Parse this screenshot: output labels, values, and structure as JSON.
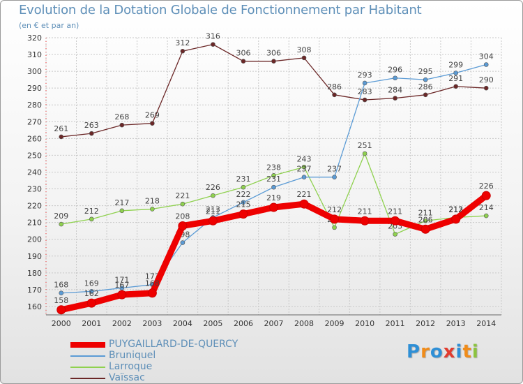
{
  "title": "Evolution de la Dotation Globale de Fonctionnement par Habitant",
  "subtitle": "(en € et par an)",
  "chart_data": {
    "type": "line",
    "title": "Evolution de la Dotation Globale de Fonctionnement par Habitant",
    "subtitle": "(en € et par an)",
    "xlabel": "",
    "ylabel": "",
    "x": [
      "2000",
      "2001",
      "2002",
      "2003",
      "2004",
      "2005",
      "2006",
      "2007",
      "2008",
      "2009",
      "2010",
      "2011",
      "2012",
      "2013",
      "2014"
    ],
    "ylim": [
      155,
      320
    ],
    "yticks": [
      160,
      170,
      180,
      190,
      200,
      210,
      220,
      230,
      240,
      250,
      260,
      270,
      280,
      290,
      300,
      310,
      320
    ],
    "grid": true,
    "legend_position": "bottom-left",
    "series": [
      {
        "name": "PUYGAILLARD-DE-QUERCY",
        "color": "#ee0000",
        "values": [
          158,
          162,
          167,
          168,
          208,
          211,
          215,
          219,
          221,
          212,
          211,
          211,
          206,
          212,
          226
        ]
      },
      {
        "name": "Bruniquel",
        "color": "#5b9bd5",
        "values": [
          168,
          169,
          171,
          173,
          198,
          213,
          222,
          231,
          237,
          237,
          293,
          296,
          295,
          299,
          304
        ]
      },
      {
        "name": "Larroque",
        "color": "#8fd14f",
        "values": [
          209,
          212,
          217,
          218,
          221,
          226,
          231,
          238,
          243,
          207,
          251,
          203,
          211,
          213,
          214
        ]
      },
      {
        "name": "Vaïssac",
        "color": "#6b2727",
        "values": [
          261,
          263,
          268,
          269,
          312,
          316,
          306,
          306,
          308,
          286,
          283,
          284,
          286,
          291,
          290
        ]
      }
    ]
  },
  "logo": {
    "text": "Proxiti",
    "letters": [
      "P",
      "r",
      "o",
      "x",
      "i",
      "t",
      "i"
    ],
    "colors": [
      "#2e8fd6",
      "#f08c1a",
      "#2e8fd6",
      "#e23b2e",
      "#2e8fd6",
      "#f08c1a",
      "#8cc43f"
    ]
  }
}
